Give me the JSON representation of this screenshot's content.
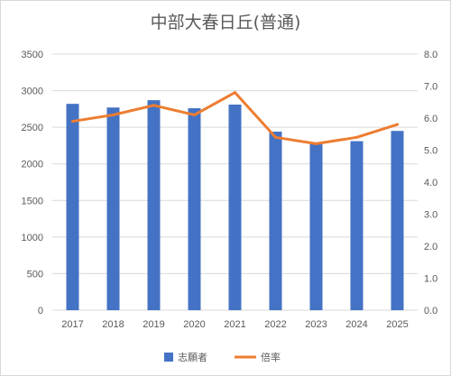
{
  "chart_data": {
    "type": "bar",
    "title": "中部大春日丘(普通)",
    "categories": [
      "2017",
      "2018",
      "2019",
      "2020",
      "2021",
      "2022",
      "2023",
      "2024",
      "2025"
    ],
    "series": [
      {
        "name": "志願者",
        "type": "bar",
        "axis": "left",
        "color": "#4472C4",
        "values": [
          2820,
          2770,
          2870,
          2760,
          2810,
          2440,
          2290,
          2310,
          2450
        ]
      },
      {
        "name": "倍率",
        "type": "line",
        "axis": "right",
        "color": "#ED7D31",
        "values": [
          5.9,
          6.1,
          6.4,
          6.1,
          6.8,
          5.4,
          5.2,
          5.4,
          5.8
        ]
      }
    ],
    "ylim": [
      0,
      3500
    ],
    "yticks": [
      "0",
      "500",
      "1000",
      "1500",
      "2000",
      "2500",
      "3000",
      "3500"
    ],
    "y2lim": [
      0,
      8
    ],
    "y2ticks": [
      "0.0",
      "1.0",
      "2.0",
      "3.0",
      "4.0",
      "5.0",
      "6.0",
      "7.0",
      "8.0"
    ],
    "grid": true,
    "legend": "bottom",
    "xlabel": "",
    "ylabel": ""
  }
}
